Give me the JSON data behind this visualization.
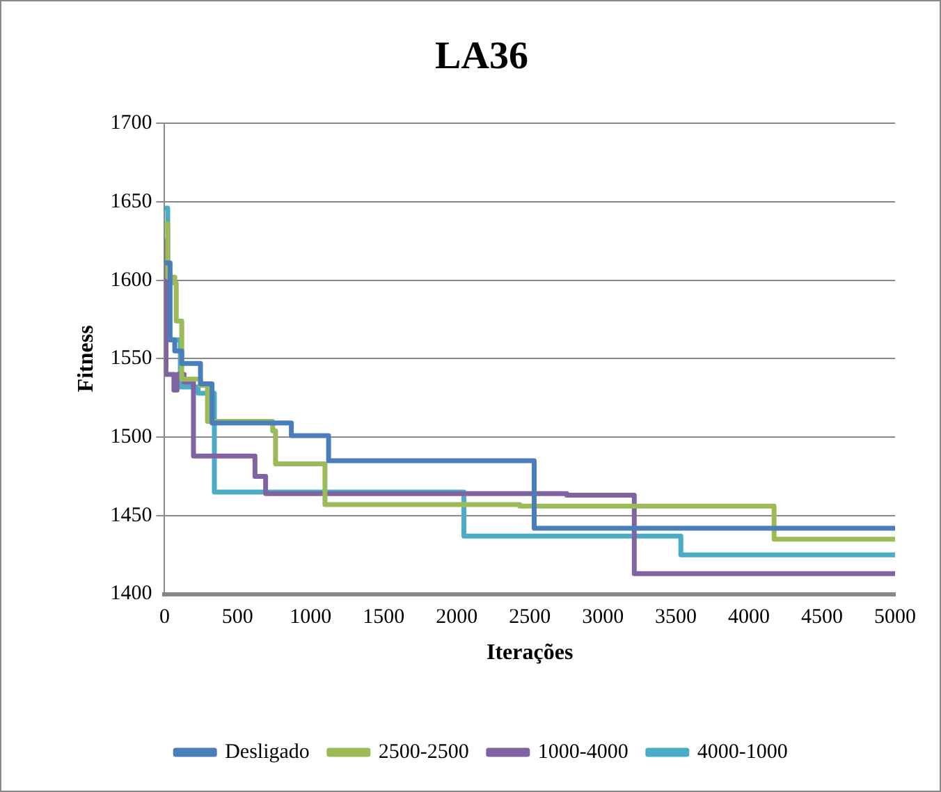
{
  "chart_data": {
    "type": "step",
    "title": "LA36",
    "xlabel": "Iterações",
    "ylabel": "Fitness",
    "xlim": [
      0,
      5000
    ],
    "xticks": [
      0,
      500,
      1000,
      1500,
      2000,
      2500,
      3000,
      3500,
      4000,
      4500,
      5000
    ],
    "ylim": [
      1400,
      1700
    ],
    "yticks": [
      1400,
      1450,
      1500,
      1550,
      1600,
      1650,
      1700
    ],
    "grid": "y",
    "legend": "bottom",
    "marker": "none",
    "line_style": "solid",
    "series": [
      {
        "name": "Desligado",
        "color": "#4a7ebb",
        "x": [
          0,
          38,
          38,
          70,
          70,
          118,
          118,
          246,
          246,
          325,
          325,
          868,
          868,
          1123,
          1123,
          2530,
          2530,
          5000
        ],
        "values": [
          1611,
          1611,
          1562,
          1562,
          1555,
          1555,
          1547,
          1547,
          1534,
          1534,
          1509,
          1509,
          1501,
          1501,
          1485,
          1485,
          1442,
          1442
        ]
      },
      {
        "name": "2500-2500",
        "color": "#9bbb59",
        "x": [
          0,
          22,
          22,
          70,
          70,
          80,
          80,
          118,
          118,
          246,
          246,
          294,
          294,
          740,
          740,
          760,
          760,
          1098,
          1098,
          2431,
          2431,
          4172,
          4172,
          5000
        ],
        "values": [
          1636,
          1636,
          1602,
          1602,
          1598,
          1598,
          1574,
          1574,
          1537,
          1537,
          1533,
          1533,
          1510,
          1510,
          1504,
          1504,
          1483,
          1483,
          1457,
          1457,
          1456,
          1456,
          1435,
          1435
        ]
      },
      {
        "name": "1000-4000",
        "color": "#8064a2",
        "x": [
          0,
          10,
          10,
          64,
          64,
          86,
          86,
          134,
          134,
          198,
          198,
          619,
          619,
          692,
          692,
          2753,
          2753,
          3215,
          3215,
          5000
        ],
        "values": [
          1625,
          1625,
          1540,
          1540,
          1530,
          1530,
          1540,
          1540,
          1535,
          1535,
          1488,
          1488,
          1475,
          1475,
          1464,
          1464,
          1463,
          1463,
          1413,
          1413
        ]
      },
      {
        "name": "4000-1000",
        "color": "#4bacc6",
        "x": [
          0,
          22,
          22,
          108,
          108,
          230,
          230,
          341,
          341,
          2049,
          2049,
          3534,
          3534,
          5000
        ],
        "values": [
          1646,
          1646,
          1562,
          1562,
          1532,
          1532,
          1528,
          1528,
          1465,
          1465,
          1437,
          1437,
          1425,
          1425
        ]
      }
    ]
  }
}
